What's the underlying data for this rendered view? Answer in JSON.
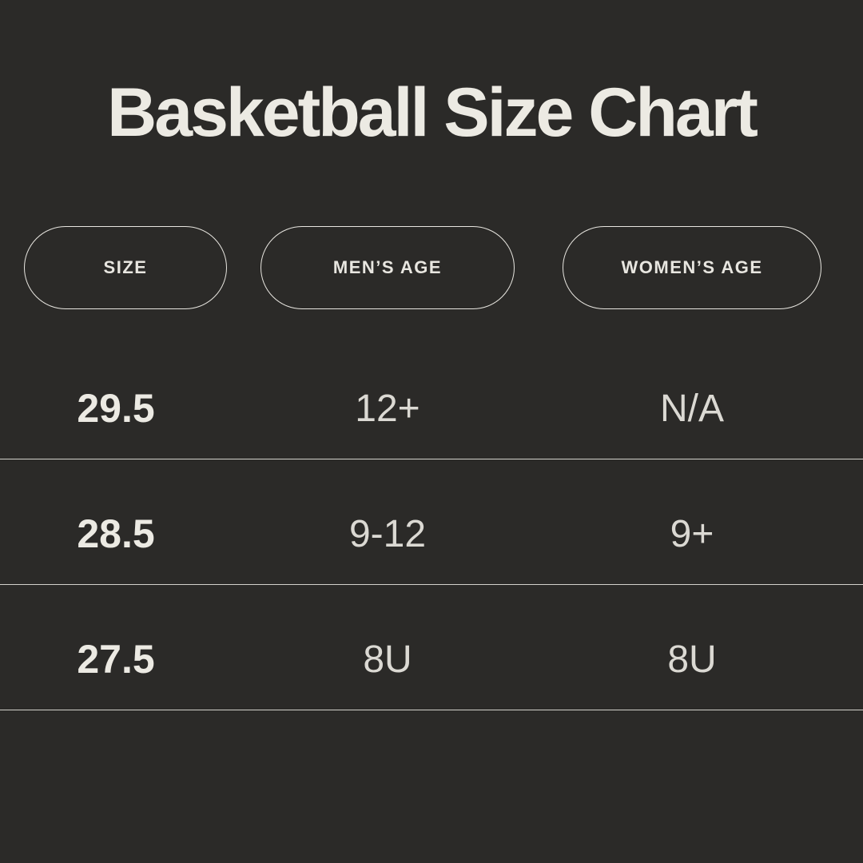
{
  "title": "Basketball Size Chart",
  "colors": {
    "background": "#2b2a28",
    "heading_text": "#eceae3",
    "primary_text": "#eceae3",
    "secondary_text": "#dbd9d3",
    "pill_border": "#e8e6e0",
    "divider": "#ebe9e3"
  },
  "chart_data": {
    "type": "table",
    "title": "Basketball Size Chart",
    "columns": [
      "SIZE",
      "MEN’S AGE",
      "WOMEN’S AGE"
    ],
    "rows": [
      [
        "29.5",
        "12+",
        "N/A"
      ],
      [
        "28.5",
        "9-12",
        "9+"
      ],
      [
        "27.5",
        "8U",
        "8U"
      ]
    ],
    "layout": {
      "header_style": "outlined-pill",
      "row_dividers": true,
      "first_column_bold": true
    }
  }
}
